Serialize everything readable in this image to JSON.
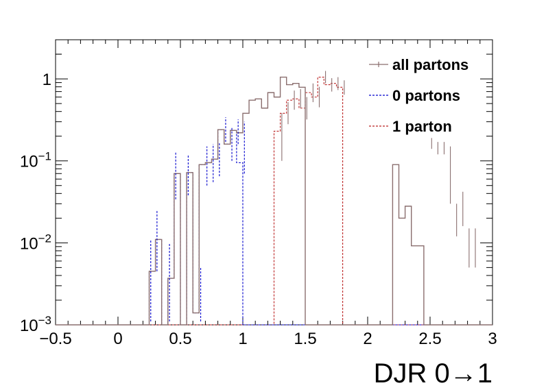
{
  "chart_data": {
    "type": "step-histogram",
    "xlabel": "DJR 0→1",
    "ylabel": "",
    "xlim": [
      -0.5,
      3.0
    ],
    "ylim": [
      0.001,
      3.0
    ],
    "yscale": "log",
    "grid": false,
    "legend_position": "top-right",
    "x_ticks": [
      {
        "value": -0.5,
        "label": "−0.5"
      },
      {
        "value": 0,
        "label": "0"
      },
      {
        "value": 0.5,
        "label": "0.5"
      },
      {
        "value": 1,
        "label": "1"
      },
      {
        "value": 1.5,
        "label": "1.5"
      },
      {
        "value": 2,
        "label": "2"
      },
      {
        "value": 2.5,
        "label": "2.5"
      },
      {
        "value": 3,
        "label": "3"
      }
    ],
    "y_ticks": [
      {
        "value": 0.001,
        "base": "10",
        "exp": "−3"
      },
      {
        "value": 0.01,
        "base": "10",
        "exp": "−2"
      },
      {
        "value": 0.1,
        "base": "10",
        "exp": "−1"
      },
      {
        "value": 1,
        "base": "1",
        "exp": ""
      }
    ],
    "bin_width": 0.05,
    "bin_start": 0.25,
    "series": [
      {
        "name": "all partons",
        "color": "#8a6e6e",
        "dash": "solid",
        "values": [
          0.0045,
          0.011,
          0.001,
          0.0037,
          0.07,
          0.001,
          0.072,
          0.0014,
          0.09,
          0.095,
          0.105,
          0.24,
          0.16,
          0.235,
          0.22,
          0.38,
          0.55,
          0.57,
          0.44,
          0.68,
          0.6,
          1.05,
          0.85,
          0.88,
          0.79,
          0.001,
          0.001,
          0.001,
          0.001,
          0.001,
          0.001,
          0.001,
          0.001,
          0.001,
          0.001,
          0.001,
          0.001,
          0.001,
          0.001,
          0.09,
          0.02,
          0.028,
          0.0092,
          0.0092
        ],
        "errors": [
          {
            "x": 1.3125,
            "lo": 0.1,
            "hi": 0.38
          },
          {
            "x": 1.3625,
            "lo": 0.28,
            "hi": 0.52
          },
          {
            "x": 1.4125,
            "lo": 0.42,
            "hi": 0.72
          },
          {
            "x": 1.4625,
            "lo": 0.44,
            "hi": 0.75
          },
          {
            "x": 1.5125,
            "lo": 0.32,
            "hi": 0.6
          },
          {
            "x": 1.5625,
            "lo": 0.52,
            "hi": 0.88
          },
          {
            "x": 1.6125,
            "lo": 0.45,
            "hi": 0.8
          },
          {
            "x": 1.6625,
            "lo": 0.88,
            "hi": 1.25
          },
          {
            "x": 1.7125,
            "lo": 0.7,
            "hi": 1.02
          },
          {
            "x": 1.7625,
            "lo": 0.73,
            "hi": 1.05
          },
          {
            "x": 1.8125,
            "lo": 0.64,
            "hi": 0.96
          },
          {
            "x": 2.5125,
            "lo": 0.14,
            "hi": 0.19
          },
          {
            "x": 2.5625,
            "lo": 0.12,
            "hi": 0.17
          },
          {
            "x": 2.6125,
            "lo": 0.12,
            "hi": 0.17
          },
          {
            "x": 2.6625,
            "lo": 0.03,
            "hi": 0.15
          },
          {
            "x": 2.7125,
            "lo": 0.012,
            "hi": 0.03
          },
          {
            "x": 2.7625,
            "lo": 0.016,
            "hi": 0.042
          },
          {
            "x": 2.8125,
            "lo": 0.005,
            "hi": 0.015
          },
          {
            "x": 2.8625,
            "lo": 0.005,
            "hi": 0.015
          }
        ]
      },
      {
        "name": "0 partons",
        "color": "#0000cc",
        "dash": "3,2",
        "values": [
          0.0045,
          0.011,
          0.001,
          0.0037,
          0.07,
          0.001,
          0.072,
          0.0014,
          0.09,
          0.095,
          0.105,
          0.24,
          0.16,
          0.235,
          0.095
        ],
        "errors": [
          {
            "x": 0.2625,
            "lo": 0.0011,
            "hi": 0.011
          },
          {
            "x": 0.3125,
            "lo": 0.0045,
            "hi": 0.025
          },
          {
            "x": 0.4125,
            "lo": 0.0011,
            "hi": 0.01
          },
          {
            "x": 0.4625,
            "lo": 0.034,
            "hi": 0.13
          },
          {
            "x": 0.5625,
            "lo": 0.038,
            "hi": 0.12
          },
          {
            "x": 0.6625,
            "lo": 0.0011,
            "hi": 0.005
          },
          {
            "x": 0.7125,
            "lo": 0.05,
            "hi": 0.15
          },
          {
            "x": 0.7625,
            "lo": 0.055,
            "hi": 0.16
          },
          {
            "x": 0.8125,
            "lo": 0.065,
            "hi": 0.17
          },
          {
            "x": 0.8625,
            "lo": 0.17,
            "hi": 0.34
          },
          {
            "x": 0.9125,
            "lo": 0.1,
            "hi": 0.26
          },
          {
            "x": 0.9625,
            "lo": 0.16,
            "hi": 0.32
          },
          {
            "x": 1.0125,
            "lo": 0.07,
            "hi": 0.3
          }
        ]
      },
      {
        "name": "1 parton",
        "color": "#bb2222",
        "dash": "3,2",
        "values": [
          0.23,
          0.38,
          0.55,
          0.57,
          0.44,
          0.68,
          0.6,
          1.05,
          0.85,
          0.88,
          0.79
        ],
        "start": 1.25
      }
    ]
  }
}
